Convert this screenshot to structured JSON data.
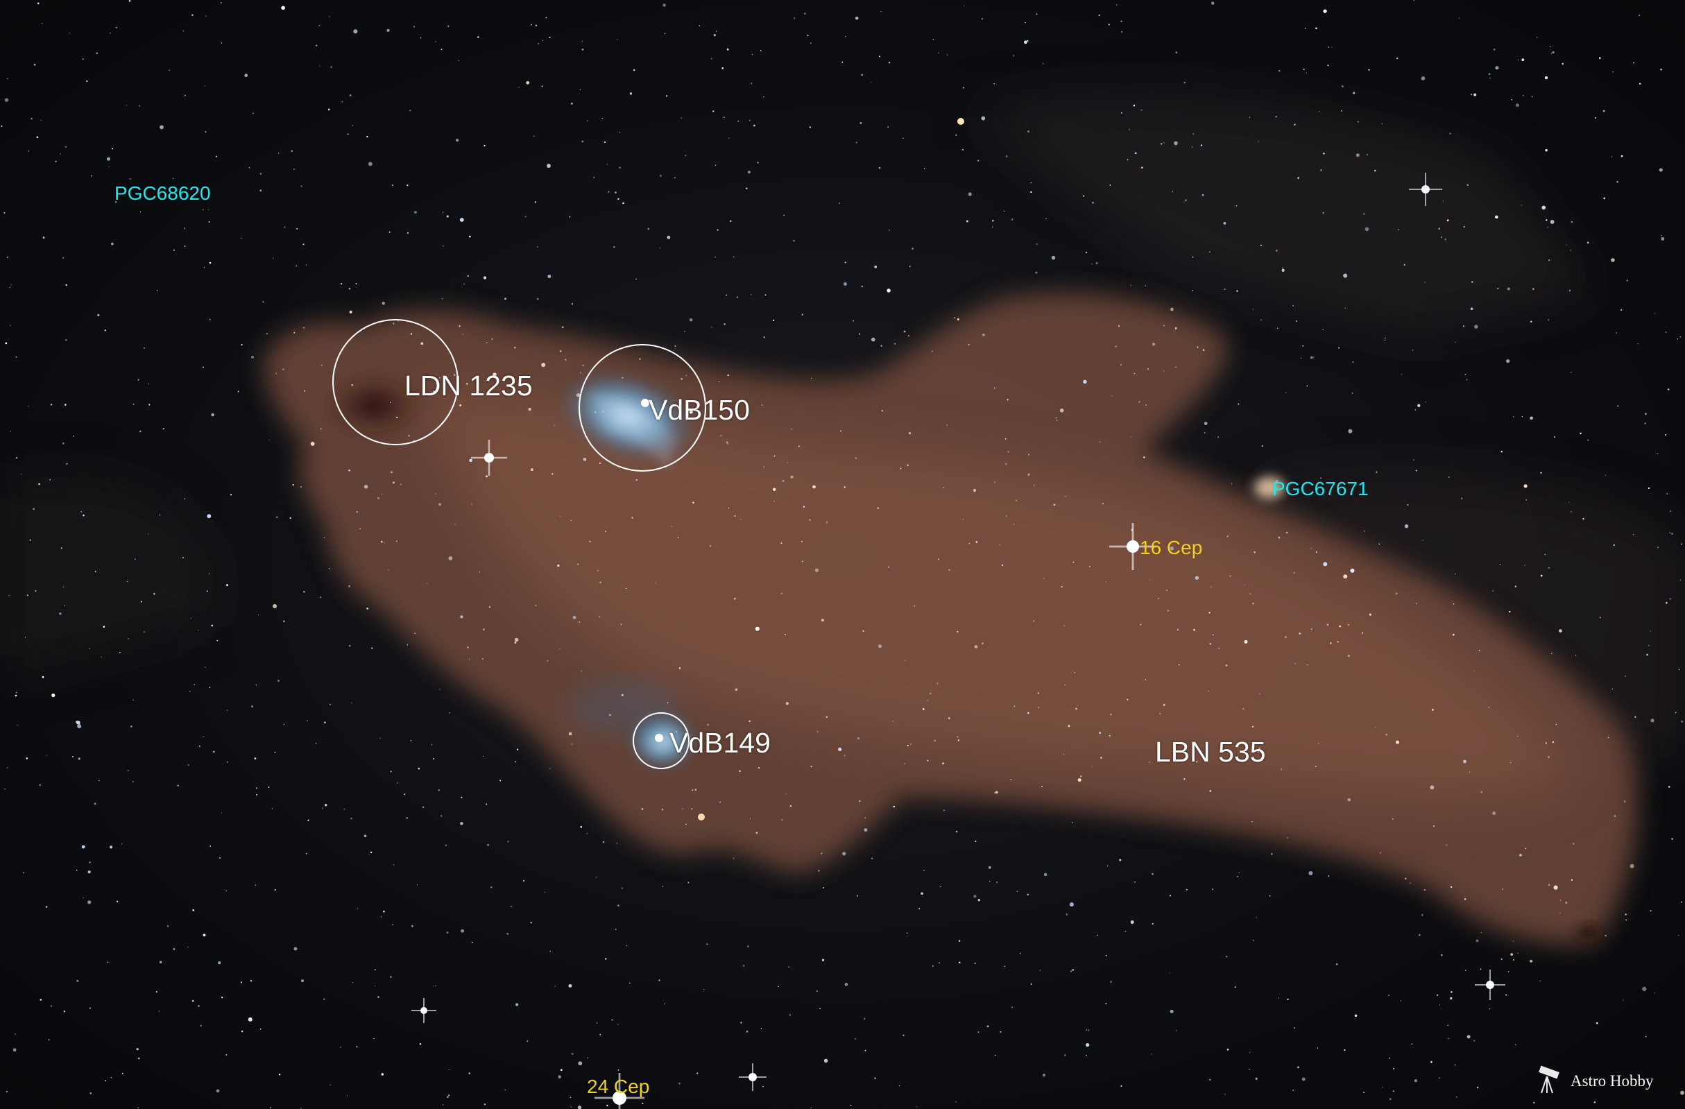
{
  "labels": {
    "ldn1235": "LDN 1235",
    "vdb150": "VdB150",
    "vdb149": "VdB149",
    "lbn535": "LBN 535",
    "pgc68620": "PGC68620",
    "pgc67671": "PGC67671",
    "cep16": "16 Cep",
    "cep24": "24 Cep"
  },
  "watermark": "Astro Hobby",
  "colors": {
    "label_white": "#ffffff",
    "label_cyan": "#1ee8ee",
    "label_yellow": "#f2d21b",
    "nebula_dust": "#7a5240",
    "reflection_blue": "#8fc7ea",
    "background": "#0d0e12"
  },
  "icons": [
    "telescope-icon"
  ]
}
